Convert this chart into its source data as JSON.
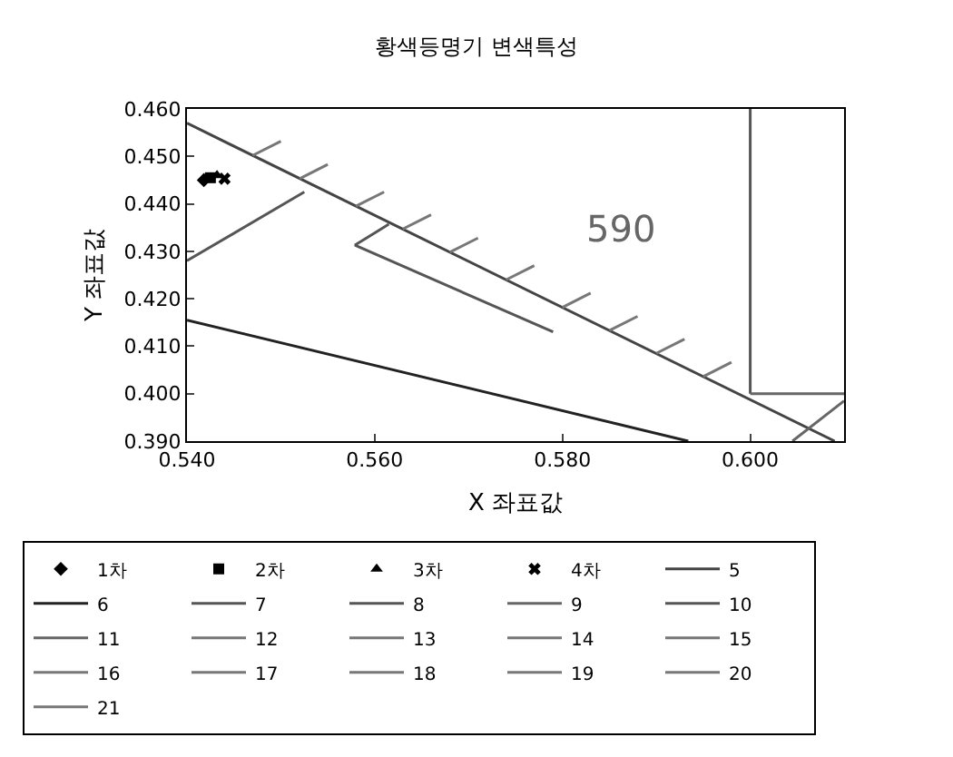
{
  "chart_data": {
    "type": "line",
    "title": "황색등명기 변색특성",
    "xlabel": "X 좌표값",
    "ylabel": "Y 좌표값",
    "xlim": [
      0.54,
      0.61
    ],
    "xticks": [
      {
        "value": 0.54,
        "label": "0.540"
      },
      {
        "value": 0.56,
        "label": "0.560"
      },
      {
        "value": 0.58,
        "label": "0.580"
      },
      {
        "value": 0.6,
        "label": "0.600"
      }
    ],
    "ylim": [
      0.39,
      0.46
    ],
    "yticks": [
      {
        "value": 0.39,
        "label": "0.390"
      },
      {
        "value": 0.4,
        "label": "0.400"
      },
      {
        "value": 0.41,
        "label": "0.410"
      },
      {
        "value": 0.42,
        "label": "0.420"
      },
      {
        "value": 0.43,
        "label": "0.430"
      },
      {
        "value": 0.44,
        "label": "0.440"
      },
      {
        "value": 0.45,
        "label": "0.450"
      },
      {
        "value": 0.46,
        "label": "0.460"
      }
    ],
    "grid": false,
    "legend": "bottom",
    "marker": "none",
    "line_style": "solid",
    "annotations": [
      "590"
    ],
    "series": [
      {
        "name": "1차",
        "type": "scatter",
        "marker": "diamond",
        "color": "#000000",
        "x": [
          0.5418
        ],
        "values": [
          0.445
        ]
      },
      {
        "name": "2차",
        "type": "scatter",
        "marker": "square",
        "color": "#000000",
        "x": [
          0.5425
        ],
        "values": [
          0.4455
        ]
      },
      {
        "name": "3차",
        "type": "scatter",
        "marker": "triangle",
        "color": "#000000",
        "x": [
          0.5432
        ],
        "values": [
          0.446
        ]
      },
      {
        "name": "4차",
        "type": "scatter",
        "marker": "cross",
        "color": "#000000",
        "x": [
          0.544
        ],
        "values": [
          0.4453
        ]
      },
      {
        "name": "5",
        "color": "#444444",
        "x": [
          0.54,
          0.609
        ],
        "values": [
          0.457,
          0.39
        ]
      },
      {
        "name": "6",
        "color": "#222222",
        "x": [
          0.54,
          0.5934
        ],
        "values": [
          0.4155,
          0.39
        ]
      },
      {
        "name": "7",
        "color": "#555555",
        "x": [
          0.54,
          0.5525
        ],
        "values": [
          0.428,
          0.4425
        ]
      },
      {
        "name": "8",
        "color": "#555555",
        "x": [
          0.6,
          0.6
        ],
        "values": [
          0.4,
          0.46
        ]
      },
      {
        "name": "9",
        "color": "#666666",
        "x": [
          0.6,
          0.61
        ],
        "values": [
          0.4,
          0.4
        ]
      },
      {
        "name": "10",
        "color": "#555555",
        "x": [
          0.5615,
          0.5579,
          0.579
        ],
        "values": [
          0.4357,
          0.4313,
          0.413
        ]
      },
      {
        "name": "11",
        "color": "#666666",
        "x": [
          0.6045,
          0.61
        ],
        "values": [
          0.39,
          0.3985
        ]
      },
      {
        "name": "12",
        "color": "#777777",
        "x": [
          0.547,
          0.55
        ],
        "values": [
          0.4502,
          0.4532
        ]
      },
      {
        "name": "13",
        "color": "#777777",
        "x": [
          0.552,
          0.555
        ],
        "values": [
          0.4453,
          0.4483
        ]
      },
      {
        "name": "14",
        "color": "#777777",
        "x": [
          0.558,
          0.561
        ],
        "values": [
          0.4395,
          0.4425
        ]
      },
      {
        "name": "15",
        "color": "#777777",
        "x": [
          0.563,
          0.566
        ],
        "values": [
          0.4347,
          0.4377
        ]
      },
      {
        "name": "16",
        "color": "#777777",
        "x": [
          0.568,
          0.571
        ],
        "values": [
          0.4298,
          0.4328
        ]
      },
      {
        "name": "17",
        "color": "#777777",
        "x": [
          0.574,
          0.577
        ],
        "values": [
          0.424,
          0.427
        ]
      },
      {
        "name": "18",
        "color": "#777777",
        "x": [
          0.58,
          0.583
        ],
        "values": [
          0.4182,
          0.4212
        ]
      },
      {
        "name": "19",
        "color": "#777777",
        "x": [
          0.585,
          0.588
        ],
        "values": [
          0.4133,
          0.4163
        ]
      },
      {
        "name": "20",
        "color": "#777777",
        "x": [
          0.59,
          0.593
        ],
        "values": [
          0.4085,
          0.4115
        ]
      },
      {
        "name": "21",
        "color": "#777777",
        "x": [
          0.595,
          0.598
        ],
        "values": [
          0.4036,
          0.4066
        ]
      }
    ]
  }
}
